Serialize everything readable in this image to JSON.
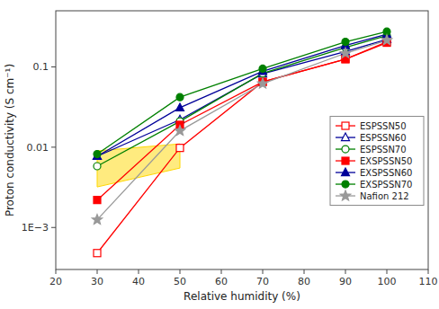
{
  "chart_data": {
    "type": "line",
    "x_label": "Relative humidity (%)",
    "y_label": "Proton conductivity (S cm⁻¹)",
    "x": [
      30,
      50,
      70,
      90,
      100
    ],
    "series": [
      {
        "name": "ESPSSN50",
        "color": "#ff0000",
        "marker": "square-open",
        "values": [
          0.00048,
          0.0098,
          0.065,
          0.125,
          0.205
        ]
      },
      {
        "name": "ESPSSN60",
        "color": "#000099",
        "marker": "triangle-open",
        "values": [
          0.0077,
          0.022,
          0.082,
          0.155,
          0.22
        ]
      },
      {
        "name": "ESPSSN70",
        "color": "#008000",
        "marker": "circle-open",
        "values": [
          0.0058,
          0.021,
          0.083,
          0.175,
          0.245
        ]
      },
      {
        "name": "EXSPSSN50",
        "color": "#ff0000",
        "marker": "square",
        "values": [
          0.0022,
          0.019,
          0.065,
          0.125,
          0.2
        ]
      },
      {
        "name": "EXSPSSN60",
        "color": "#000099",
        "marker": "triangle",
        "values": [
          0.0077,
          0.031,
          0.088,
          0.185,
          0.255
        ]
      },
      {
        "name": "EXSPSSN70",
        "color": "#008000",
        "marker": "circle",
        "values": [
          0.0082,
          0.042,
          0.095,
          0.205,
          0.275
        ]
      },
      {
        "name": "Nafion 212",
        "color": "#999999",
        "marker": "star",
        "values": [
          0.00125,
          0.016,
          0.062,
          0.148,
          0.215
        ]
      }
    ],
    "xlim": [
      20,
      110
    ],
    "xticks": [
      20,
      30,
      40,
      50,
      60,
      70,
      80,
      90,
      100,
      110
    ],
    "ylim": [
      0.0003,
      0.5
    ],
    "yticks": [
      {
        "value": 0.001,
        "label": "1E−3"
      },
      0.01,
      0.1
    ],
    "log": "y",
    "grid": false,
    "legend": "center right",
    "highlight": {
      "points": [
        [
          30,
          0.0032
        ],
        [
          50,
          0.0055
        ],
        [
          50,
          0.011
        ],
        [
          30,
          0.009
        ]
      ],
      "color": "#FFD700"
    }
  }
}
